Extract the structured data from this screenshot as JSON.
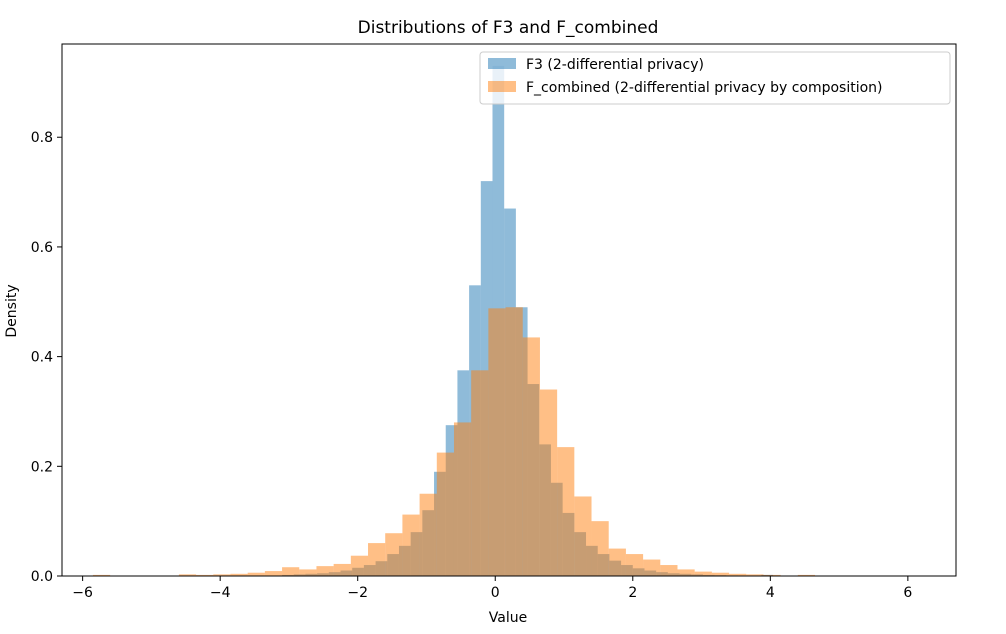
{
  "chart_data": {
    "type": "bar",
    "title": "Distributions of F3 and F_combined",
    "xlabel": "Value",
    "ylabel": "Density",
    "xlim": [
      -6.3,
      6.7
    ],
    "ylim": [
      0,
      0.97
    ],
    "xticks": [
      -6,
      -4,
      -2,
      0,
      2,
      4,
      6
    ],
    "xtick_labels": [
      "−6",
      "−4",
      "−2",
      "0",
      "2",
      "4",
      "6"
    ],
    "yticks": [
      0.0,
      0.2,
      0.4,
      0.6,
      0.8
    ],
    "ytick_labels": [
      "0.0",
      "0.2",
      "0.4",
      "0.6",
      "0.8"
    ],
    "grid": false,
    "legend_position": "top-right",
    "series": [
      {
        "name": "F3 (2-differential privacy)",
        "color": "#1f77b4",
        "opacity": 0.5,
        "bin_edges": [
          -3.1,
          -2.93,
          -2.76,
          -2.59,
          -2.42,
          -2.25,
          -2.08,
          -1.91,
          -1.74,
          -1.57,
          -1.4,
          -1.23,
          -1.06,
          -0.89,
          -0.72,
          -0.55,
          -0.38,
          -0.21,
          -0.04,
          0.13,
          0.3,
          0.47,
          0.64,
          0.81,
          0.98,
          1.15,
          1.32,
          1.49,
          1.66,
          1.83,
          2.0,
          2.17,
          2.34,
          2.51,
          2.68,
          2.85,
          3.02,
          3.19,
          3.36,
          3.53,
          3.7,
          3.87,
          4.04,
          4.21
        ],
        "values": [
          0.002,
          0.003,
          0.004,
          0.005,
          0.007,
          0.01,
          0.015,
          0.02,
          0.027,
          0.04,
          0.055,
          0.08,
          0.12,
          0.19,
          0.275,
          0.375,
          0.53,
          0.72,
          0.93,
          0.67,
          0.49,
          0.35,
          0.24,
          0.17,
          0.115,
          0.08,
          0.055,
          0.04,
          0.028,
          0.02,
          0.014,
          0.01,
          0.007,
          0.005,
          0.004,
          0.003,
          0.002,
          0.0015,
          0.001,
          0.0008,
          0.0,
          0.002,
          0.0
        ]
      },
      {
        "name": "F_combined (2-differential privacy by composition)",
        "color": "#ff7f0e",
        "opacity": 0.5,
        "bin_edges": [
          -5.85,
          -5.6,
          -5.35,
          -5.1,
          -4.85,
          -4.6,
          -4.35,
          -4.1,
          -3.85,
          -3.6,
          -3.35,
          -3.1,
          -2.85,
          -2.6,
          -2.35,
          -2.1,
          -1.85,
          -1.6,
          -1.35,
          -1.1,
          -0.85,
          -0.6,
          -0.35,
          -0.1,
          0.15,
          0.4,
          0.65,
          0.9,
          1.15,
          1.4,
          1.65,
          1.9,
          2.15,
          2.4,
          2.65,
          2.9,
          3.15,
          3.4,
          3.65,
          3.9,
          4.15,
          4.4,
          4.65
        ],
        "values": [
          0.002,
          0.0,
          0.0,
          0.0,
          0.0,
          0.003,
          0.002,
          0.003,
          0.004,
          0.006,
          0.009,
          0.016,
          0.012,
          0.018,
          0.022,
          0.037,
          0.06,
          0.078,
          0.112,
          0.15,
          0.225,
          0.28,
          0.375,
          0.488,
          0.49,
          0.435,
          0.34,
          0.235,
          0.145,
          0.1,
          0.05,
          0.04,
          0.03,
          0.02,
          0.012,
          0.008,
          0.006,
          0.004,
          0.003,
          0.002,
          0.0,
          0.002
        ]
      }
    ]
  }
}
